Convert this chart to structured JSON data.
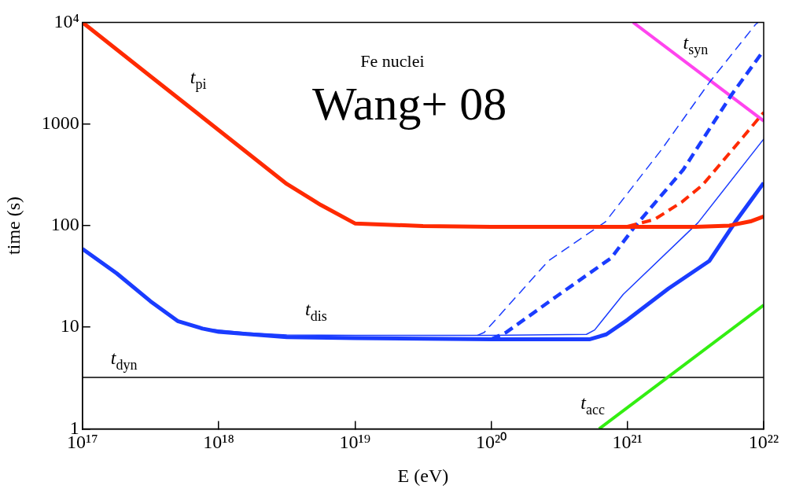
{
  "chart_data": {
    "type": "line",
    "xlabel": "E (eV)",
    "ylabel": "time (s)",
    "log": "xy",
    "grid": false,
    "legend": false,
    "marker": "none",
    "xlim": [
      1e+17,
      1e+22
    ],
    "ylim": [
      1,
      10000
    ],
    "xticks": [
      {
        "value": 1e+17,
        "label": "10¹⁷"
      },
      {
        "value": 1e+18,
        "label": "10¹⁸"
      },
      {
        "value": 1e+19,
        "label": "10¹⁹"
      },
      {
        "value": 1e+20,
        "label": "10²⁰"
      },
      {
        "value": 1e+21,
        "label": "10²¹"
      },
      {
        "value": 1e+22,
        "label": "10²²"
      }
    ],
    "yticks": [
      1,
      10,
      100,
      1000,
      {
        "value": 10000,
        "label": "10⁴"
      }
    ],
    "series": [
      {
        "color": "#ff2a00",
        "line_style": "solid",
        "x": [
          1e+17,
          3.16e+17,
          1e+18,
          3.16e+18,
          5.6e+18,
          1e+19,
          3.16e+19,
          1e+20,
          1e+21,
          3.16e+21,
          5.6e+21,
          8e+21,
          1e+22
        ],
        "values": [
          10000,
          2950,
          870,
          257,
          160,
          105,
          99,
          97,
          97,
          97,
          100,
          110,
          123
        ]
      },
      {
        "color": "#ff2a00",
        "line_style": "dashed",
        "x": [
          1e+21,
          1.58e+21,
          2.5e+21,
          3.55e+21,
          5e+21,
          7.1e+21,
          1e+22
        ],
        "values": [
          98,
          115,
          170,
          250,
          430,
          750,
          1300
        ]
      },
      {
        "color": "#1a3cff",
        "line_style": "solid",
        "x": [
          1e+17,
          1.78e+17,
          3.16e+17,
          5e+17,
          7.6e+17,
          1e+18,
          3.16e+18,
          1e+19,
          1e+20,
          5.25e+20,
          7e+20,
          1e+21,
          2e+21,
          4e+21,
          6.2e+21,
          1e+22
        ],
        "values": [
          59,
          34,
          18,
          11.5,
          9.7,
          9,
          8,
          7.8,
          7.6,
          7.6,
          8.5,
          11.8,
          24,
          45,
          109,
          263
        ]
      },
      {
        "color": "#1a3cff",
        "line_style": "solid",
        "x": [
          1e+17,
          1.78e+17,
          3.16e+17,
          5e+17,
          7.6e+17,
          1.6e+18,
          3.16e+18,
          1e+19,
          1e+20,
          5e+20,
          5.75e+20,
          9.3e+20,
          3.3e+21,
          1e+22
        ],
        "values": [
          59,
          34,
          18,
          11.5,
          9.7,
          8.8,
          8.4,
          8.3,
          8.3,
          8.5,
          9.4,
          21,
          107,
          710
        ]
      },
      {
        "color": "#1a3cff",
        "line_style": "dashed",
        "x": [
          1e+20,
          1.29e+20,
          3e+20,
          7.6e+20,
          1.12e+21,
          2.57e+21,
          5.75e+21,
          9.8e+21
        ],
        "values": [
          7.6,
          8.9,
          20,
          48,
          96,
          355,
          1900,
          5100
        ]
      },
      {
        "color": "#1a3cff",
        "line_style": "dashed",
        "x": [
          7.9e+19,
          8.9e+19,
          2.63e+20,
          6.9e+20,
          1.78e+21,
          4e+21,
          8.7e+21,
          9.1e+21
        ],
        "values": [
          8.3,
          8.9,
          45,
          109,
          560,
          2570,
          9500,
          10000
        ]
      },
      {
        "color": "#ff44ee",
        "line_style": "solid",
        "x": [
          1.1e+21,
          1e+22
        ],
        "values": [
          10000,
          1070
        ]
      },
      {
        "color": "#33ee11",
        "line_style": "solid",
        "x": [
          6.2e+20,
          1e+22
        ],
        "values": [
          1,
          16.5
        ]
      }
    ],
    "ref_lines": [
      {
        "axis": "y",
        "value": 3.2,
        "color": "#000000"
      }
    ],
    "annotations": [
      "Fe nuclei",
      "Wang+ 08",
      "t$_{pi}$",
      "t$_{dis}$",
      "t$_{dyn}$",
      "t$_{acc}$",
      "t$_{syn}$"
    ]
  }
}
